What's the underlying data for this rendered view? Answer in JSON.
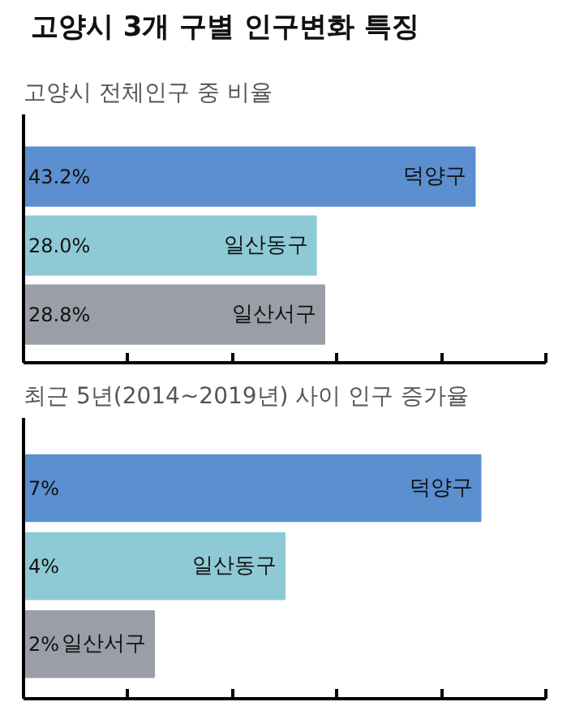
{
  "chart_data": [
    {
      "type": "bar",
      "orientation": "horizontal",
      "title": "고양시 3개 구별 인구변화 특징",
      "subtitle": "고양시 전체인구 중 비율",
      "categories": [
        "덕양구",
        "일산동구",
        "일산서구"
      ],
      "values": [
        43.2,
        28.0,
        28.8
      ],
      "colors": [
        "#5b8fcf",
        "#8ecad6",
        "#9a9ea6"
      ],
      "value_labels": [
        "43.2%",
        "28.0%",
        "28.8%"
      ],
      "xlim": [
        0,
        50
      ],
      "xticks": [
        {
          "value": 0,
          "label": null
        },
        {
          "value": 10,
          "label": null
        },
        {
          "value": 20,
          "label": null
        },
        {
          "value": 30,
          "label": null
        },
        {
          "value": 40,
          "label": null
        },
        {
          "value": 50,
          "label": null
        }
      ]
    },
    {
      "type": "bar",
      "orientation": "horizontal",
      "title": "최근 5년(2014~2019년) 사이 인구 증가율",
      "categories": [
        "덕양구",
        "일산동구",
        "일산서구"
      ],
      "values": [
        7,
        4,
        2
      ],
      "colors": [
        "#5b8fcf",
        "#8ecad6",
        "#9a9ea6"
      ],
      "value_labels": [
        "7%",
        "4%",
        "2%"
      ],
      "xlim": [
        0,
        8
      ],
      "xticks": [
        {
          "value": 0,
          "label": null
        },
        {
          "value": 1.6,
          "label": null
        },
        {
          "value": 3.2,
          "label": null
        },
        {
          "value": 4.8,
          "label": null
        },
        {
          "value": 6.4,
          "label": null
        },
        {
          "value": 8,
          "label": null
        }
      ]
    }
  ]
}
